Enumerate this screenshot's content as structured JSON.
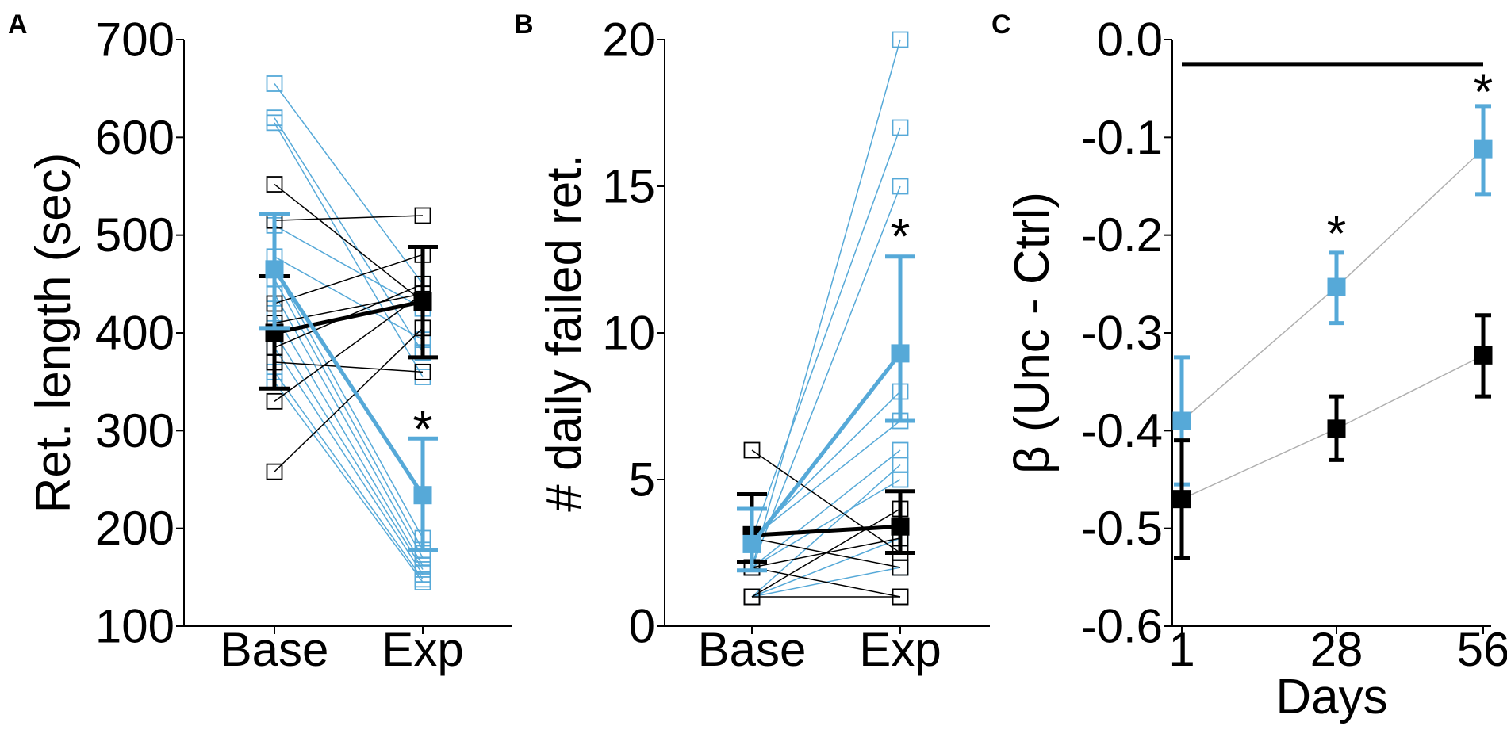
{
  "colors": {
    "experimental": "#56a9d8",
    "control": "#000000",
    "connector": "#b0b0b0"
  },
  "chart_data": [
    {
      "panel": "A",
      "type": "scatter",
      "ylabel": "Ret. length (sec)",
      "xlabel": "",
      "categories": [
        "Base",
        "Exp"
      ],
      "ylim": [
        100,
        700
      ],
      "yticks": [
        "100",
        "200",
        "300",
        "400",
        "500",
        "600",
        "700"
      ],
      "grid": false,
      "legend": "none",
      "individual_series": [
        {
          "group": "control",
          "base": 552,
          "exp": 432
        },
        {
          "group": "control",
          "base": 515,
          "exp": 520
        },
        {
          "group": "control",
          "base": 430,
          "exp": 480
        },
        {
          "group": "control",
          "base": 410,
          "exp": 440
        },
        {
          "group": "control",
          "base": 385,
          "exp": 450
        },
        {
          "group": "control",
          "base": 370,
          "exp": 360
        },
        {
          "group": "control",
          "base": 330,
          "exp": 440
        },
        {
          "group": "control",
          "base": 258,
          "exp": 405
        },
        {
          "group": "experimental",
          "base": 655,
          "exp": 450
        },
        {
          "group": "experimental",
          "base": 620,
          "exp": 380
        },
        {
          "group": "experimental",
          "base": 615,
          "exp": 355
        },
        {
          "group": "experimental",
          "base": 510,
          "exp": 425
        },
        {
          "group": "experimental",
          "base": 478,
          "exp": 393
        },
        {
          "group": "experimental",
          "base": 465,
          "exp": 190
        },
        {
          "group": "experimental",
          "base": 455,
          "exp": 178
        },
        {
          "group": "experimental",
          "base": 440,
          "exp": 170
        },
        {
          "group": "experimental",
          "base": 420,
          "exp": 162
        },
        {
          "group": "experimental",
          "base": 400,
          "exp": 158
        },
        {
          "group": "experimental",
          "base": 385,
          "exp": 153
        },
        {
          "group": "experimental",
          "base": 360,
          "exp": 148
        },
        {
          "group": "experimental",
          "base": 350,
          "exp": 145
        }
      ],
      "means": [
        {
          "group": "control",
          "values": [
            400,
            432
          ],
          "err_low": [
            343,
            375
          ],
          "err_high": [
            458,
            488
          ]
        },
        {
          "group": "experimental",
          "values": [
            465,
            234
          ],
          "err_low": [
            405,
            178
          ],
          "err_high": [
            522,
            292
          ]
        }
      ],
      "annotations": [
        {
          "text": "*",
          "category": "Exp",
          "y": 305
        }
      ]
    },
    {
      "panel": "B",
      "type": "scatter",
      "ylabel": "# daily failed ret.",
      "xlabel": "",
      "categories": [
        "Base",
        "Exp"
      ],
      "ylim": [
        0,
        20
      ],
      "yticks": [
        "0",
        "5",
        "10",
        "15",
        "20"
      ],
      "grid": false,
      "legend": "none",
      "individual_series": [
        {
          "group": "control",
          "base": 6,
          "exp": 2.5
        },
        {
          "group": "control",
          "base": 1,
          "exp": 4
        },
        {
          "group": "control",
          "base": 1,
          "exp": 1
        },
        {
          "group": "control",
          "base": 2,
          "exp": 1
        },
        {
          "group": "control",
          "base": 3,
          "exp": 2
        },
        {
          "group": "control",
          "base": 2,
          "exp": 3
        },
        {
          "group": "experimental",
          "base": 2,
          "exp": 20
        },
        {
          "group": "experimental",
          "base": 3,
          "exp": 17
        },
        {
          "group": "experimental",
          "base": 2,
          "exp": 15
        },
        {
          "group": "experimental",
          "base": 3,
          "exp": 8
        },
        {
          "group": "experimental",
          "base": 3,
          "exp": 7
        },
        {
          "group": "experimental",
          "base": 2,
          "exp": 6
        },
        {
          "group": "experimental",
          "base": 1,
          "exp": 5.5
        },
        {
          "group": "experimental",
          "base": 2,
          "exp": 5
        },
        {
          "group": "experimental",
          "base": 1,
          "exp": 3
        },
        {
          "group": "experimental",
          "base": 1,
          "exp": 2
        }
      ],
      "means": [
        {
          "group": "control",
          "values": [
            3.1,
            3.4
          ],
          "err_low": [
            2.2,
            2.5
          ],
          "err_high": [
            4.5,
            4.6
          ]
        },
        {
          "group": "experimental",
          "values": [
            2.8,
            9.3
          ],
          "err_low": [
            1.9,
            7.0
          ],
          "err_high": [
            4.0,
            12.6
          ]
        }
      ],
      "annotations": [
        {
          "text": "*",
          "category": "Exp",
          "y": 13.4
        }
      ]
    },
    {
      "panel": "C",
      "type": "line",
      "ylabel": "β (Unc - Ctrl)",
      "xlabel": "Days",
      "categories": [
        "1",
        "28",
        "56"
      ],
      "ylim": [
        -0.6,
        0.0
      ],
      "yticks": [
        "0.0",
        "-0.1",
        "-0.2",
        "-0.3",
        "-0.4",
        "-0.5",
        "-0.6"
      ],
      "grid": false,
      "legend": "none",
      "reference_line": {
        "y": -0.025,
        "from": "1",
        "to": "56"
      },
      "series": [
        {
          "group": "experimental",
          "values": [
            -0.39,
            -0.253,
            -0.112
          ],
          "err_low": [
            -0.455,
            -0.29,
            -0.158
          ],
          "err_high": [
            -0.325,
            -0.218,
            -0.068
          ]
        },
        {
          "group": "control",
          "values": [
            -0.47,
            -0.398,
            -0.323
          ],
          "err_low": [
            -0.53,
            -0.43,
            -0.365
          ],
          "err_high": [
            -0.41,
            -0.365,
            -0.282
          ]
        }
      ],
      "annotations": [
        {
          "text": "*",
          "category": "28",
          "y": -0.195
        },
        {
          "text": "*",
          "category": "56",
          "y": -0.05
        }
      ]
    }
  ]
}
